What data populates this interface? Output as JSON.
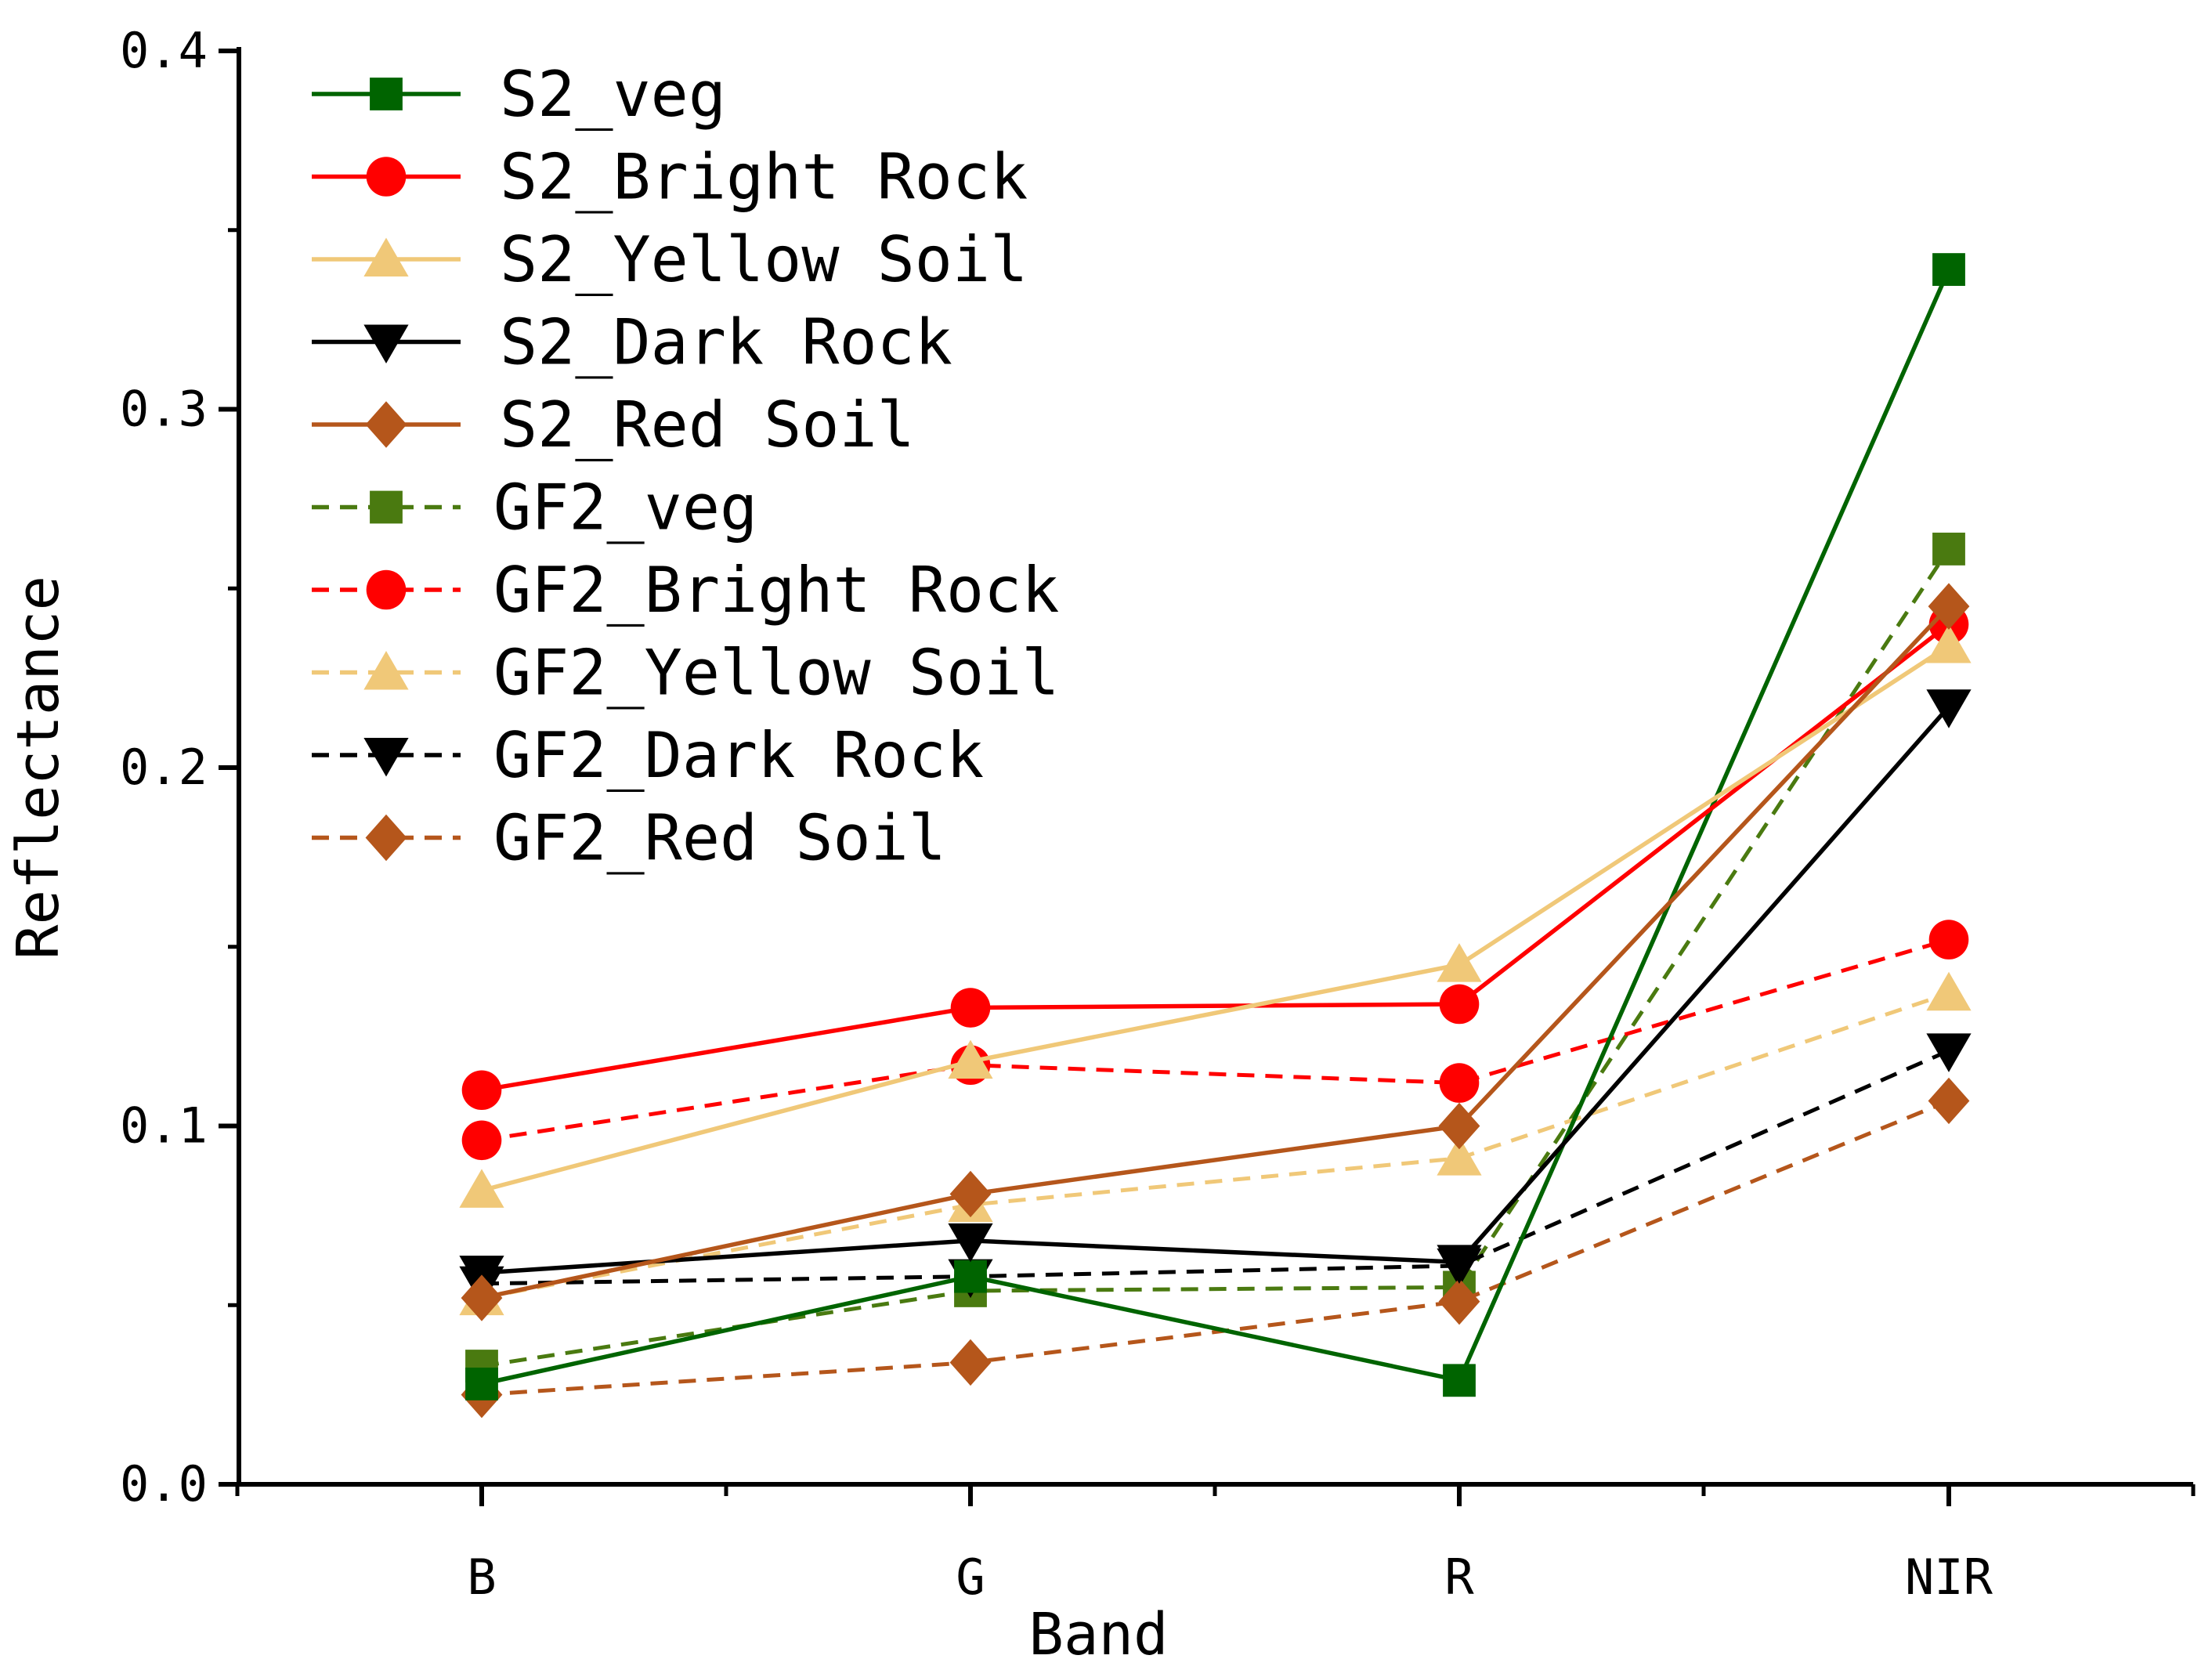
{
  "chart_data": {
    "type": "line",
    "title": "",
    "xlabel": "Band",
    "ylabel": "Reflectance",
    "categories": [
      "B",
      "G",
      "R",
      "NIR"
    ],
    "ylim": [
      0.0,
      0.4
    ],
    "yticks": [
      "0.0",
      "0.1",
      "0.2",
      "0.3",
      "0.4"
    ],
    "legend_position": "top-left",
    "grid": false,
    "series": [
      {
        "name": "S2_veg",
        "values": [
          0.028,
          0.058,
          0.029,
          0.339
        ],
        "color": "#006400",
        "marker": "square",
        "dashed": false
      },
      {
        "name": "S2_Bright Rock",
        "values": [
          0.11,
          0.133,
          0.134,
          0.24
        ],
        "color": "#ff0000",
        "marker": "circle",
        "dashed": false
      },
      {
        "name": "S2_Yellow Soil",
        "values": [
          0.082,
          0.118,
          0.145,
          0.234
        ],
        "color": "#f0c878",
        "marker": "triangle-up",
        "dashed": false
      },
      {
        "name": "S2_Dark Rock",
        "values": [
          0.059,
          0.068,
          0.062,
          0.217
        ],
        "color": "#000000",
        "marker": "triangle-down",
        "dashed": false
      },
      {
        "name": "S2_Red Soil",
        "values": [
          0.052,
          0.081,
          0.1,
          0.245
        ],
        "color": "#b5561b",
        "marker": "diamond",
        "dashed": false
      },
      {
        "name": "GF2_veg",
        "values": [
          0.033,
          0.054,
          0.055,
          0.261
        ],
        "color": "#4a7a10",
        "marker": "square",
        "dashed": true
      },
      {
        "name": "GF2_Bright Rock",
        "values": [
          0.096,
          0.117,
          0.112,
          0.152
        ],
        "color": "#ff0000",
        "marker": "circle",
        "dashed": true
      },
      {
        "name": "GF2_Yellow Soil",
        "values": [
          0.052,
          0.078,
          0.091,
          0.137
        ],
        "color": "#f0c878",
        "marker": "triangle-up",
        "dashed": true
      },
      {
        "name": "GF2_Dark Rock",
        "values": [
          0.056,
          0.058,
          0.061,
          0.121
        ],
        "color": "#000000",
        "marker": "triangle-down",
        "dashed": true
      },
      {
        "name": "GF2_Red Soil",
        "values": [
          0.025,
          0.034,
          0.051,
          0.107
        ],
        "color": "#b5561b",
        "marker": "diamond",
        "dashed": true
      }
    ]
  }
}
